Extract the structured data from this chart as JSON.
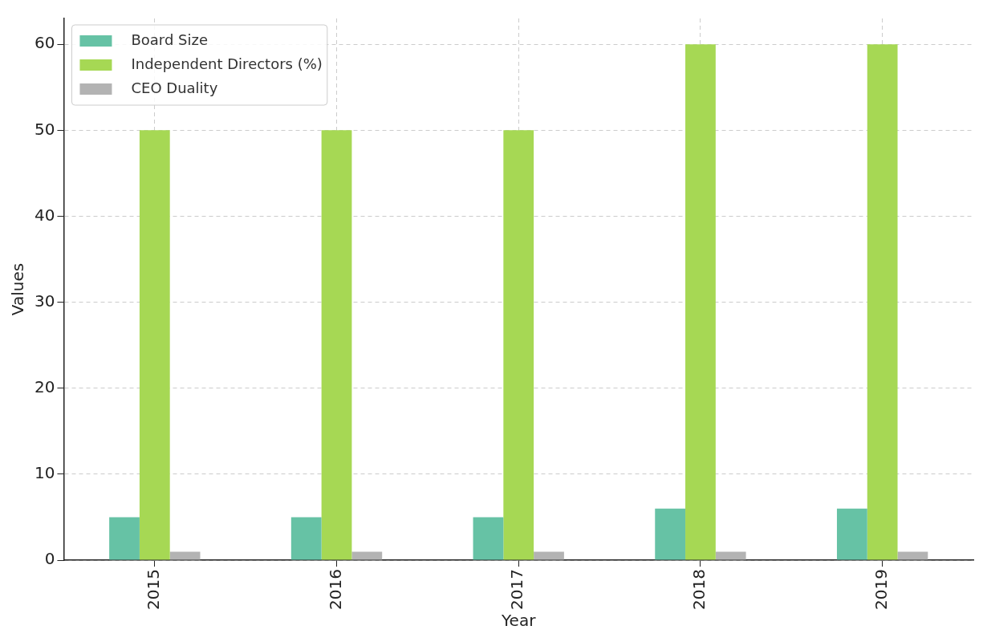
{
  "chart_data": {
    "type": "bar",
    "xlabel": "Year",
    "ylabel": "Values",
    "categories": [
      "2015",
      "2016",
      "2017",
      "2018",
      "2019"
    ],
    "series": [
      {
        "name": "Board Size",
        "color": "#66c2a5",
        "values": [
          5,
          5,
          5,
          6,
          6
        ]
      },
      {
        "name": "Independent Directors (%)",
        "color": "#a6d854",
        "values": [
          50,
          50,
          50,
          60,
          60
        ]
      },
      {
        "name": "CEO Duality",
        "color": "#b3b3b3",
        "values": [
          1,
          1,
          1,
          1,
          1
        ]
      }
    ],
    "ylim": [
      0,
      63
    ],
    "yticks": [
      0,
      10,
      20,
      30,
      40,
      50,
      60
    ],
    "grid": true,
    "legend": "top left"
  }
}
